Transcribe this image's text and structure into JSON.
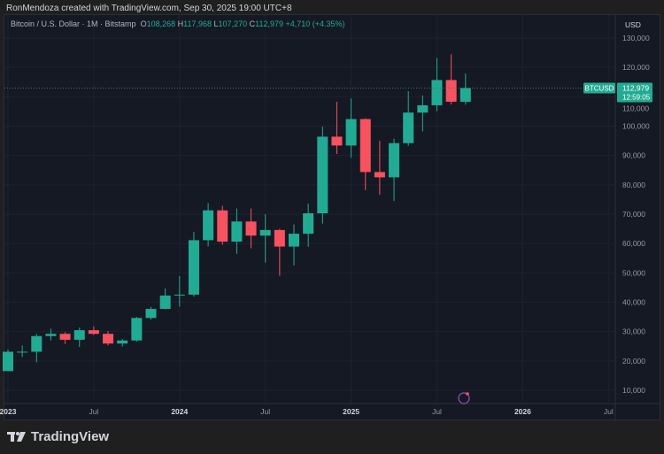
{
  "credit": "RonMendoza created with TradingView.com, Sep 30, 2025 19:00 UTC+8",
  "legend": {
    "symbol": "Bitcoin / U.S. Dollar · 1M · Bitstamp",
    "o_label": "O",
    "o": "108,268",
    "h_label": "H",
    "h": "117,968",
    "l_label": "L",
    "l": "107,270",
    "c_label": "C",
    "c": "112,979",
    "change": "+4,710 (+4.35%)"
  },
  "price_tag": {
    "symbol": "BTCUSD",
    "price": "112,979",
    "countdown": "12:59:05"
  },
  "currency": "USD",
  "brand": "TradingView",
  "colors": {
    "up": "#22ab94",
    "down": "#f7525f",
    "background": "#151924"
  },
  "chart_data": {
    "type": "candlestick",
    "ylim": [
      5000,
      132000
    ],
    "y_ticks": [
      "10,000",
      "20,000",
      "30,000",
      "40,000",
      "50,000",
      "60,000",
      "70,000",
      "80,000",
      "90,000",
      "100,000",
      "110,000",
      "120,000",
      "130,000"
    ],
    "x_ticks": [
      {
        "label": "2023",
        "month": 0
      },
      {
        "label": "Jul",
        "month": 6
      },
      {
        "label": "2024",
        "month": 12
      },
      {
        "label": "Jul",
        "month": 18
      },
      {
        "label": "2025",
        "month": 24
      },
      {
        "label": "Jul",
        "month": 30
      },
      {
        "label": "2026",
        "month": 36
      },
      {
        "label": "Jul",
        "month": 42
      }
    ],
    "grid": true,
    "candles": [
      [
        "2023-01",
        16530,
        23950,
        16500,
        23125
      ],
      [
        "2023-02",
        23125,
        25250,
        21350,
        23140
      ],
      [
        "2023-03",
        23140,
        29190,
        19550,
        28470
      ],
      [
        "2023-04",
        28470,
        31000,
        26950,
        29230
      ],
      [
        "2023-05",
        29230,
        29820,
        25800,
        27210
      ],
      [
        "2023-06",
        27210,
        31390,
        24750,
        30470
      ],
      [
        "2023-07",
        30470,
        31800,
        28850,
        29230
      ],
      [
        "2023-08",
        29230,
        30200,
        25300,
        25930
      ],
      [
        "2023-09",
        25930,
        27480,
        24900,
        26970
      ],
      [
        "2023-10",
        26970,
        35000,
        26550,
        34640
      ],
      [
        "2023-11",
        34640,
        38400,
        34100,
        37720
      ],
      [
        "2023-12",
        37720,
        44700,
        37600,
        42280
      ],
      [
        "2024-01",
        42280,
        48970,
        38500,
        42580
      ],
      [
        "2024-02",
        42580,
        64000,
        41900,
        61130
      ],
      [
        "2024-03",
        61130,
        73800,
        59000,
        71300
      ],
      [
        "2024-04",
        71300,
        72800,
        59600,
        60650
      ],
      [
        "2024-05",
        60650,
        71950,
        56500,
        67500
      ],
      [
        "2024-06",
        67500,
        71950,
        58400,
        62700
      ],
      [
        "2024-07",
        62700,
        70000,
        53500,
        64600
      ],
      [
        "2024-08",
        64600,
        65000,
        49000,
        58970
      ],
      [
        "2024-09",
        58970,
        66500,
        52550,
        63330
      ],
      [
        "2024-10",
        63330,
        73600,
        58900,
        70300
      ],
      [
        "2024-11",
        70300,
        99800,
        66800,
        96400
      ],
      [
        "2024-12",
        96400,
        108300,
        90500,
        93400
      ],
      [
        "2025-01",
        93400,
        109400,
        89200,
        102400
      ],
      [
        "2025-02",
        102400,
        102700,
        78200,
        84350
      ],
      [
        "2025-03",
        84350,
        95000,
        76600,
        82550
      ],
      [
        "2025-04",
        82550,
        95700,
        74500,
        94200
      ],
      [
        "2025-05",
        94200,
        111900,
        93300,
        104600
      ],
      [
        "2025-06",
        104600,
        110400,
        98200,
        107100
      ],
      [
        "2025-07",
        107100,
        123200,
        105100,
        115700
      ],
      [
        "2025-08",
        115700,
        124500,
        107400,
        108300
      ],
      [
        "2025-09",
        108268,
        117968,
        107270,
        112979
      ]
    ],
    "last_price": 112979
  }
}
